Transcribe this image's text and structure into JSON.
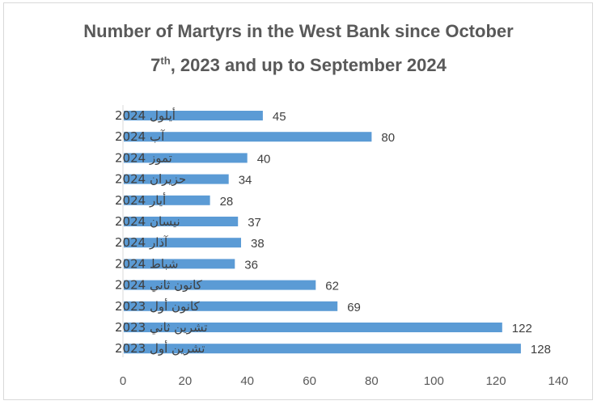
{
  "title_line1": "Number of Martyrs in the West Bank since October",
  "title_line2_num": "7",
  "title_line2_sup": "th",
  "title_line2_rest": ", 2023 and up to September 2024",
  "colors": {
    "bar": "#5b9bd5",
    "axis": "#d9d9d9",
    "text": "#404040",
    "title": "#595959"
  },
  "chart_data": {
    "type": "bar",
    "orientation": "horizontal",
    "title": "Number of Martyrs in the West Bank since October 7th, 2023 and up to September 2024",
    "categories": [
      "أيلول 2024",
      "آب 2024",
      "تموز 2024",
      "حزيران 2024",
      "أيار 2024",
      "نيسان 2024",
      "آذار 2024",
      "شباط 2024",
      "كانون ثاني 2024",
      "كانون أول 2023",
      "تشرين ثاني 2023",
      "تشرين أول 2023"
    ],
    "values": [
      45,
      80,
      40,
      34,
      28,
      37,
      38,
      36,
      62,
      69,
      122,
      128
    ],
    "xlim": [
      0,
      140
    ],
    "xticks": [
      0,
      20,
      40,
      60,
      80,
      100,
      120,
      140
    ],
    "xlabel": "",
    "ylabel": "",
    "grid": false,
    "legend": "none",
    "data_labels": true
  }
}
